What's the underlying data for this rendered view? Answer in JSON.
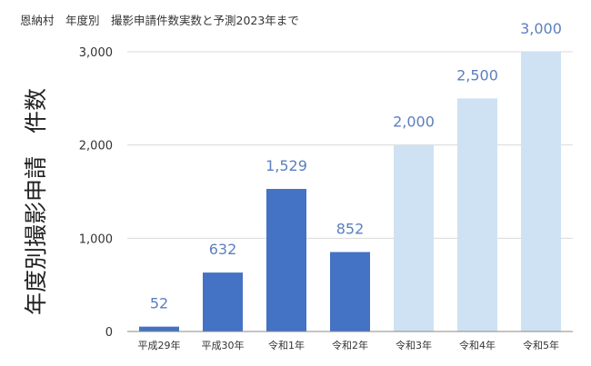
{
  "chart_data": {
    "type": "bar",
    "title": "恩納村　年度別　撮影申請件数実数と予測2023年まで",
    "xlabel": "",
    "ylabel": "年度別撮影申請　件数",
    "categories": [
      "平成29年",
      "平成30年",
      "令和1年",
      "令和2年",
      "令和3年",
      "令和4年",
      "令和5年"
    ],
    "values": [
      52,
      632,
      1529,
      852,
      2000,
      2500,
      3000
    ],
    "value_labels": [
      "52",
      "632",
      "1,529",
      "852",
      "2,000",
      "2,500",
      "3,000"
    ],
    "kind": [
      "actual",
      "actual",
      "actual",
      "actual",
      "forecast",
      "forecast",
      "forecast"
    ],
    "ylim": [
      0,
      3000
    ],
    "yticks": [
      0,
      1000,
      2000,
      3000
    ],
    "ytick_labels": [
      "0",
      "1,000",
      "2,000",
      "3,000"
    ],
    "grid": true,
    "colors": {
      "actual": "#4472c4",
      "forecast": "#cfe2f3",
      "label": "#5b7fc0",
      "grid": "#d9d9d9",
      "axis": "#888888"
    }
  }
}
